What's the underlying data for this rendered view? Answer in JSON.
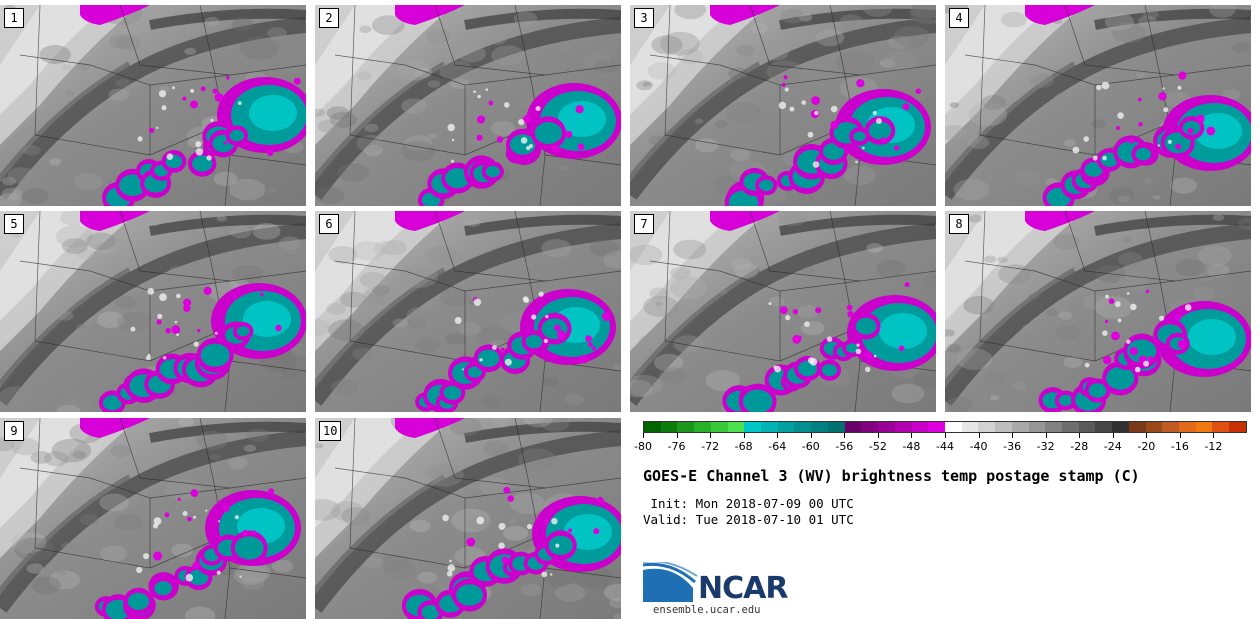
{
  "panels": [
    {
      "label": "1",
      "variant": 0
    },
    {
      "label": "2",
      "variant": 1
    },
    {
      "label": "3",
      "variant": 2
    },
    {
      "label": "4",
      "variant": 3
    },
    {
      "label": "5",
      "variant": 4
    },
    {
      "label": "6",
      "variant": 5
    },
    {
      "label": "7",
      "variant": 6
    },
    {
      "label": "8",
      "variant": 7
    },
    {
      "label": "9",
      "variant": 8
    },
    {
      "label": "10",
      "variant": 9
    }
  ],
  "colorbar": {
    "colors": [
      "#006400",
      "#0c7d0c",
      "#1a961a",
      "#28b028",
      "#39c839",
      "#4de04d",
      "#00c8c8",
      "#00b4b4",
      "#00a0a0",
      "#009090",
      "#008080",
      "#007070",
      "#6a006a",
      "#800080",
      "#980098",
      "#b000b0",
      "#c800c8",
      "#e000e0",
      "#ffffff",
      "#e6e6e6",
      "#d2d2d2",
      "#bebebe",
      "#aaaaaa",
      "#969696",
      "#828282",
      "#6e6e6e",
      "#5a5a5a",
      "#464646",
      "#323232",
      "#7a3a1a",
      "#9a4a1a",
      "#c05a20",
      "#e06a1a",
      "#f07a10",
      "#e05010",
      "#c83000"
    ],
    "ticks": [
      "-80",
      "-76",
      "-72",
      "-68",
      "-64",
      "-60",
      "-56",
      "-52",
      "-48",
      "-44",
      "-40",
      "-36",
      "-32",
      "-28",
      "-24",
      "-20",
      "-16",
      "-12"
    ]
  },
  "title": "GOES-E Channel 3 (WV) brightness temp postage stamp (C)",
  "init": " Init: Mon 2018-07-09 00 UTC",
  "valid": "Valid: Tue 2018-07-10 01 UTC",
  "logo": {
    "name": "NCAR",
    "url": "ensemble.ucar.edu"
  }
}
